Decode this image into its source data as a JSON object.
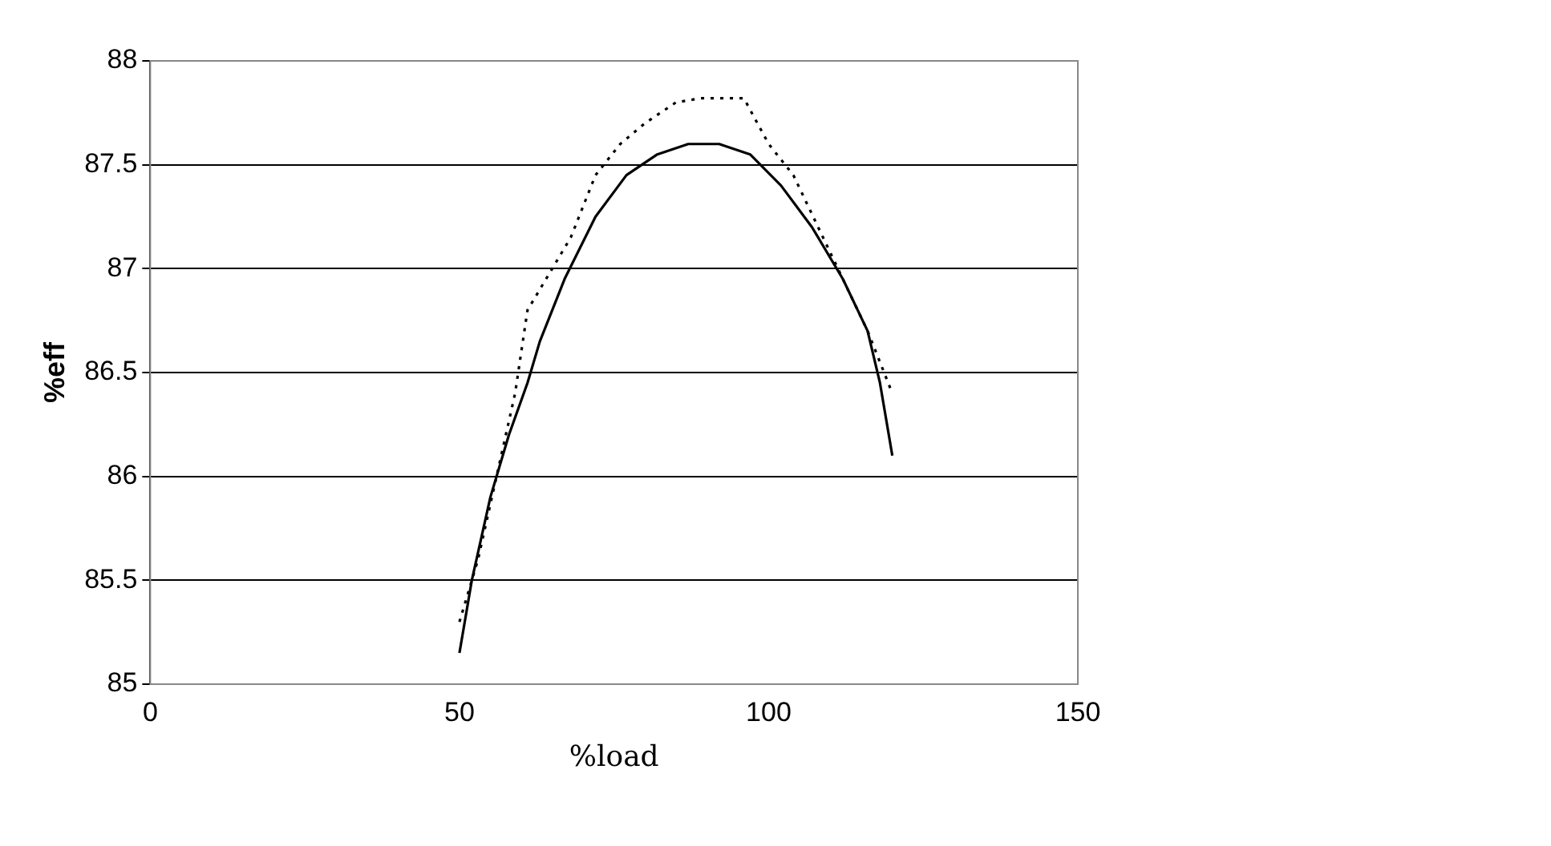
{
  "chart_data": {
    "type": "line",
    "xlabel": "%load",
    "ylabel": "%eff",
    "xlim": [
      0,
      150
    ],
    "xticks": [
      0,
      50,
      100,
      150
    ],
    "ylim": [
      85,
      88
    ],
    "yticks": [
      85,
      85.5,
      86,
      86.5,
      87,
      87.5,
      88
    ],
    "grid": "y",
    "marker": "none",
    "legend": false,
    "series": [
      {
        "color": "#000000",
        "line_style": "solid",
        "x": [
          50,
          52,
          55,
          58,
          61,
          63,
          67,
          72,
          77,
          82,
          87,
          92,
          97,
          102,
          107,
          112,
          116,
          118,
          120
        ],
        "values": [
          85.15,
          85.5,
          85.9,
          86.2,
          86.45,
          86.65,
          86.95,
          87.25,
          87.45,
          87.55,
          87.6,
          87.6,
          87.55,
          87.4,
          87.2,
          86.95,
          86.7,
          86.45,
          86.1
        ]
      },
      {
        "color": "#000000",
        "line_style": "dotted",
        "x": [
          50,
          53,
          56,
          59,
          61,
          64,
          68,
          72,
          76,
          80,
          85,
          89,
          93,
          96,
          100,
          104,
          108,
          112,
          116,
          120
        ],
        "values": [
          85.3,
          85.6,
          86.0,
          86.4,
          86.8,
          86.95,
          87.15,
          87.45,
          87.6,
          87.7,
          87.8,
          87.82,
          87.82,
          87.82,
          87.6,
          87.45,
          87.2,
          86.95,
          86.7,
          86.4
        ]
      }
    ]
  }
}
